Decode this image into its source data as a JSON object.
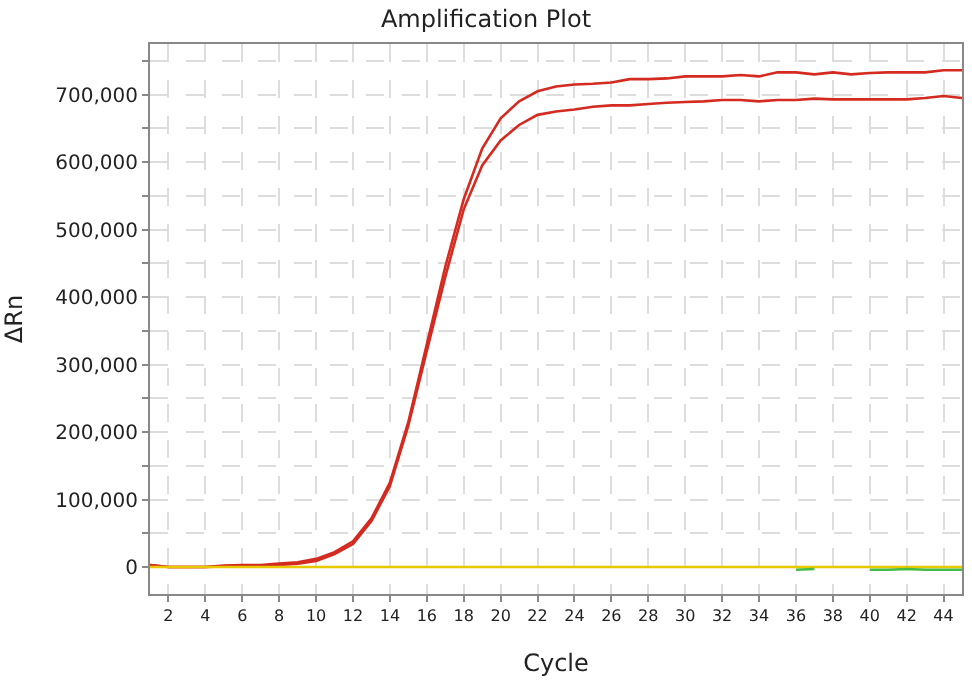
{
  "chart_data": {
    "type": "line",
    "title": "Amplification Plot",
    "xlabel": "Cycle",
    "ylabel": "ΔRn",
    "x": [
      1,
      2,
      3,
      4,
      5,
      6,
      7,
      8,
      9,
      10,
      11,
      12,
      13,
      14,
      15,
      16,
      17,
      18,
      19,
      20,
      21,
      22,
      23,
      24,
      25,
      26,
      27,
      28,
      29,
      30,
      31,
      32,
      33,
      34,
      35,
      36,
      37,
      38,
      39,
      40,
      41,
      42,
      43,
      44,
      45
    ],
    "series": [
      {
        "color": "#d42a20",
        "values": [
          3000,
          0,
          0,
          0,
          2000,
          3000,
          3000,
          5000,
          7000,
          12000,
          22000,
          38000,
          72000,
          125000,
          215000,
          330000,
          445000,
          545000,
          620000,
          665000,
          690000,
          705000,
          712000,
          715000,
          716000,
          718000,
          723000,
          723000,
          724000,
          727000,
          727000,
          727000,
          729000,
          727000,
          733000,
          733000,
          730000,
          733000,
          730000,
          732000,
          733000,
          733000,
          733000,
          736000,
          736000
        ]
      },
      {
        "color": "#d42a20",
        "values": [
          3000,
          0,
          0,
          0,
          1000,
          2000,
          2000,
          3000,
          5000,
          9000,
          19000,
          34000,
          68000,
          120000,
          210000,
          320000,
          430000,
          530000,
          595000,
          632000,
          655000,
          670000,
          675000,
          678000,
          682000,
          684000,
          684000,
          686000,
          688000,
          689000,
          690000,
          692000,
          692000,
          690000,
          692000,
          692000,
          694000,
          693000,
          693000,
          693000,
          693000,
          693000,
          695000,
          698000,
          695000
        ]
      },
      {
        "color": "#e8c800",
        "values": [
          0,
          0,
          0,
          0,
          0,
          0,
          0,
          0,
          0,
          0,
          0,
          0,
          0,
          0,
          0,
          0,
          0,
          0,
          0,
          0,
          0,
          0,
          0,
          0,
          0,
          0,
          0,
          0,
          0,
          0,
          0,
          0,
          0,
          0,
          0,
          0,
          0,
          0,
          0,
          0,
          0,
          0,
          0,
          0,
          0
        ]
      },
      {
        "color": "#44bb44",
        "values": [
          null,
          null,
          null,
          null,
          null,
          null,
          null,
          null,
          null,
          null,
          null,
          null,
          null,
          null,
          null,
          null,
          null,
          null,
          null,
          null,
          null,
          null,
          null,
          null,
          null,
          null,
          null,
          null,
          null,
          null,
          null,
          null,
          null,
          null,
          null,
          -4000,
          -3000,
          null,
          null,
          -4000,
          -4000,
          -3000,
          -4000,
          -4000,
          -4000
        ]
      }
    ],
    "xlim": [
      1,
      45
    ],
    "xticks": [
      2,
      4,
      6,
      8,
      10,
      12,
      14,
      16,
      18,
      20,
      22,
      24,
      26,
      28,
      30,
      32,
      34,
      36,
      38,
      40,
      42,
      44
    ],
    "ylim": [
      -40000,
      775000
    ],
    "yticks": [
      {
        "value": 0,
        "label": "0"
      },
      {
        "value": 50000,
        "label": null
      },
      {
        "value": 100000,
        "label": "100,000"
      },
      {
        "value": 150000,
        "label": null
      },
      {
        "value": 200000,
        "label": "200,000"
      },
      {
        "value": 250000,
        "label": null
      },
      {
        "value": 300000,
        "label": "300,000"
      },
      {
        "value": 350000,
        "label": null
      },
      {
        "value": 400000,
        "label": "400,000"
      },
      {
        "value": 450000,
        "label": null
      },
      {
        "value": 500000,
        "label": "500,000"
      },
      {
        "value": 550000,
        "label": null
      },
      {
        "value": 600000,
        "label": "600,000"
      },
      {
        "value": 650000,
        "label": null
      },
      {
        "value": 700000,
        "label": "700,000"
      },
      {
        "value": 750000,
        "label": null
      }
    ],
    "grid": true,
    "marker": "none",
    "line_style": "solid"
  }
}
